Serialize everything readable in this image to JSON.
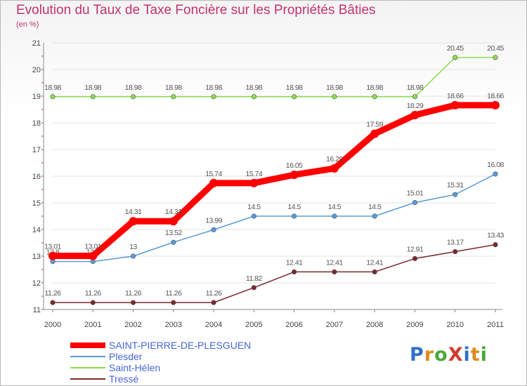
{
  "title": "Evolution du Taux de Taxe Foncière sur les Propriétés Bâties",
  "subtitle": "(en %)",
  "logo": {
    "text": "ProXiti",
    "letters": [
      {
        "ch": "P",
        "color": "#2f6fc7"
      },
      {
        "ch": "r",
        "color": "#e08a1e"
      },
      {
        "ch": "o",
        "color": "#4aa83a"
      },
      {
        "ch": "X",
        "color": "#d43b2c"
      },
      {
        "ch": "i",
        "color": "#2f6fc7"
      },
      {
        "ch": "t",
        "color": "#e08a1e"
      },
      {
        "ch": "i",
        "color": "#4aa83a"
      }
    ]
  },
  "chart_data": {
    "type": "line",
    "title": "Evolution du Taux de Taxe Foncière sur les Propriétés Bâties",
    "ylabel": "(en %)",
    "xlabel": "",
    "x": [
      "2000",
      "2001",
      "2002",
      "2003",
      "2004",
      "2005",
      "2006",
      "2007",
      "2008",
      "2009",
      "2010",
      "2011"
    ],
    "ylim": [
      11,
      21
    ],
    "yticks": [
      "11",
      "12",
      "13",
      "14",
      "15",
      "16",
      "17",
      "18",
      "19",
      "20",
      "21"
    ],
    "grid": true,
    "legend_position": "bottom-left",
    "series": [
      {
        "name": "SAINT-PIERRE-DE-PLESGUEN",
        "color": "#ff0000",
        "values": [
          13.01,
          13.01,
          14.31,
          14.31,
          15.74,
          15.74,
          16.05,
          16.29,
          17.59,
          18.29,
          18.66,
          18.66
        ],
        "labels": [
          "13.01",
          "13.01",
          "14.31",
          "14.31",
          "15.74",
          "15.74",
          "16.05",
          "16.29",
          "17.59",
          "18.29",
          "18.66",
          "18.66"
        ]
      },
      {
        "name": "Plesder",
        "color": "#5b9bd5",
        "values": [
          12.8,
          12.8,
          13.0,
          13.52,
          13.99,
          14.5,
          14.5,
          14.5,
          14.5,
          15.01,
          15.31,
          16.08
        ],
        "labels": [
          "12.8",
          "12.8",
          "13",
          "13.52",
          "13.99",
          "14.5",
          "14.5",
          "14.5",
          "14.5",
          "15.01",
          "15.31",
          "16.08"
        ]
      },
      {
        "name": "Saint-Hélen",
        "color": "#8ddc4f",
        "values": [
          18.98,
          18.98,
          18.98,
          18.98,
          18.98,
          18.98,
          18.98,
          18.98,
          18.98,
          18.98,
          20.45,
          20.45
        ],
        "labels": [
          "18.98",
          "18.98",
          "18.98",
          "18.98",
          "18.98",
          "18.98",
          "18.98",
          "18.98",
          "18.98",
          "18.98",
          "20.45",
          "20.45"
        ]
      },
      {
        "name": "Tressé",
        "color": "#7b2a2a",
        "values": [
          11.26,
          11.26,
          11.26,
          11.26,
          11.26,
          11.82,
          12.41,
          12.41,
          12.41,
          12.91,
          13.17,
          13.43
        ],
        "labels": [
          "11.26",
          "11.26",
          "11.26",
          "11.26",
          "11.26",
          "11.82",
          "12.41",
          "12.41",
          "12.41",
          "12.91",
          "13.17",
          "13.43"
        ]
      }
    ]
  }
}
